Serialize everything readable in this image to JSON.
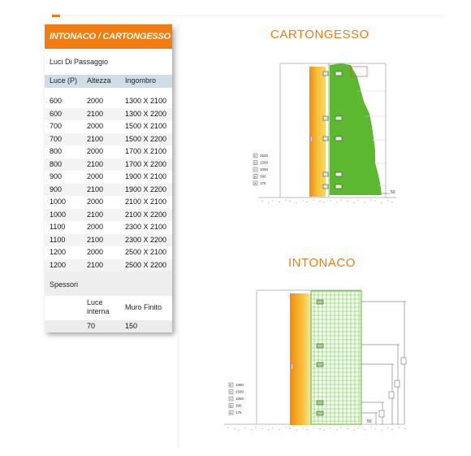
{
  "panel": {
    "title": "INTONACO / CARTONGESSO",
    "subtitle": "Luci Di Passaggio",
    "headers": [
      "Luce (P)",
      "Altezza",
      "Ingombro"
    ],
    "rows": [
      [
        "600",
        "2000",
        "1300 X 2100"
      ],
      [
        "600",
        "2100",
        "1300 X 2200"
      ],
      [
        "700",
        "2000",
        "1500 X 2100"
      ],
      [
        "700",
        "2100",
        "1500 X 2200"
      ],
      [
        "800",
        "2000",
        "1700 X 2100"
      ],
      [
        "800",
        "2100",
        "1700 X 2200"
      ],
      [
        "900",
        "2000",
        "1900 X 2100"
      ],
      [
        "900",
        "2100",
        "1900 X 2200"
      ],
      [
        "1000",
        "2000",
        "2100 X 2100"
      ],
      [
        "1000",
        "2100",
        "2100 X 2200"
      ],
      [
        "1100",
        "2000",
        "2300 X 2100"
      ],
      [
        "1100",
        "2100",
        "2300 X 2200"
      ],
      [
        "1200",
        "2000",
        "2500 X 2100"
      ],
      [
        "1200",
        "2100",
        "2500 X 2200"
      ]
    ],
    "spessori_title": "Spessori",
    "spessori_headers": [
      "",
      "Luce interna",
      "Muro Finito"
    ],
    "spessori_values": [
      "",
      "70",
      "150"
    ]
  },
  "figures": {
    "cartongesso_title": "CARTONGESSO",
    "intonaco_title": "INTONACO",
    "legend_cartongesso": [
      {
        "key": "E",
        "value": "2500"
      },
      {
        "key": "D",
        "value": "1500"
      },
      {
        "key": "C",
        "value": "1050"
      },
      {
        "key": "B",
        "value": "390"
      },
      {
        "key": "A",
        "value": "175"
      }
    ],
    "legend_intonaco": [
      {
        "key": "E",
        "value": "1980"
      },
      {
        "key": "D",
        "value": "1580"
      },
      {
        "key": "C",
        "value": "1050"
      },
      {
        "key": "B",
        "value": "390"
      },
      {
        "key": "A",
        "value": "175"
      }
    ],
    "dim_label_cartongesso": "50",
    "dim_label_intonaco": "50"
  },
  "colors": {
    "accent": "#f07c12",
    "green": "#5cb82e",
    "orange_panel": "#f5a623",
    "table_head": "#cfdde8"
  }
}
